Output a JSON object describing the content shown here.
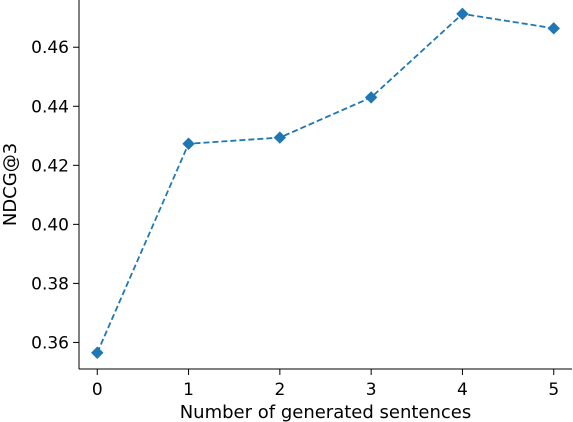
{
  "chart_data": {
    "type": "line",
    "title": "",
    "xlabel": "Number of generated sentences",
    "ylabel": "NDCG@3",
    "x": [
      0,
      1,
      2,
      3,
      4,
      5
    ],
    "x_ticks": [
      "0",
      "1",
      "2",
      "3",
      "4",
      "5"
    ],
    "y_ticks": [
      "0.36",
      "0.38",
      "0.40",
      "0.42",
      "0.44",
      "0.46"
    ],
    "y_tick_values": [
      0.36,
      0.38,
      0.4,
      0.42,
      0.44,
      0.46
    ],
    "xlim": [
      -0.2,
      5.2
    ],
    "ylim": [
      0.351,
      0.476
    ],
    "grid": false,
    "series": [
      {
        "values": [
          0.3565,
          0.4273,
          0.4294,
          0.443,
          0.4713,
          0.4664
        ],
        "color": "#1f77b4",
        "line_style": "dashed",
        "marker": "diamond"
      }
    ]
  }
}
